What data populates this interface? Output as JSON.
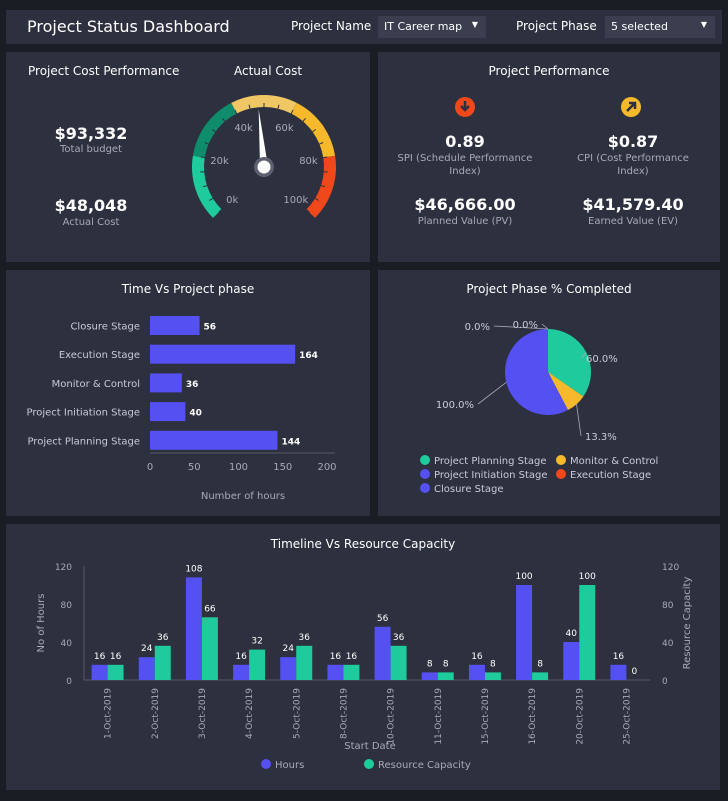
{
  "header": {
    "title": "Project Status Dashboard",
    "project_name_label": "Project Name",
    "project_name_value": "IT Career map",
    "project_phase_label": "Project Phase",
    "project_phase_value": "5 selected"
  },
  "cost": {
    "title": "Project Cost Performance",
    "budget_value": "$93,332",
    "budget_label": "Total budget",
    "actual_value": "$48,048",
    "actual_label": "Actual Cost"
  },
  "gauge": {
    "title": "Actual Cost",
    "value": 48048,
    "min": 0,
    "max": 100000,
    "tick_labels": [
      "0k",
      "20k",
      "40k",
      "60k",
      "80k",
      "100k"
    ],
    "bands": [
      {
        "from": 0,
        "to": 20000,
        "color": "#1fcb9c"
      },
      {
        "from": 20000,
        "to": 40000,
        "color": "#0e8c6c"
      },
      {
        "from": 40000,
        "to": 60000,
        "color": "#f0c765"
      },
      {
        "from": 60000,
        "to": 80000,
        "color": "#f5b92b"
      },
      {
        "from": 80000,
        "to": 100000,
        "color": "#f0481a"
      }
    ]
  },
  "performance": {
    "title": "Project Performance",
    "spi": {
      "value": "0.89",
      "label": "SPI (Schedule Performance Index)",
      "icon": "arrow-down-circle-icon",
      "color": "#f0481a"
    },
    "cpi": {
      "value": "$0.87",
      "label": "CPI (Cost Performance Index)",
      "icon": "arrow-up-right-circle-icon",
      "color": "#f5b92b"
    },
    "pv": {
      "value": "$46,666.00",
      "label": "Planned Value (PV)"
    },
    "ev": {
      "value": "$41,579.40",
      "label": "Earned Value (EV)"
    }
  },
  "chart_data": [
    {
      "type": "bar",
      "orientation": "horizontal",
      "title": "Time Vs Project phase",
      "xlabel": "Number of hours",
      "categories": [
        "Closure Stage",
        "Execution Stage",
        "Monitor & Control",
        "Project Initiation Stage",
        "Project Planning Stage"
      ],
      "values": [
        56,
        164,
        36,
        40,
        144
      ],
      "xlim": [
        0,
        200
      ],
      "xticks": [
        "0",
        "50",
        "100",
        "150",
        "200"
      ],
      "color": "#5550f2"
    },
    {
      "type": "pie",
      "title": "Project Phase % Completed",
      "slices": [
        {
          "name": "Project Planning Stage",
          "value": 60.0,
          "label": "60.0%",
          "color": "#1fcb9c"
        },
        {
          "name": "Monitor & Control",
          "value": 13.3,
          "label": "13.3%",
          "color": "#f5b92b"
        },
        {
          "name": "Project Initiation Stage",
          "value": 100.0,
          "label": "100.0%",
          "color": "#5550f2"
        },
        {
          "name": "Execution Stage",
          "value": 0.0,
          "label": "0.0%",
          "color": "#f0481a"
        },
        {
          "name": "Closure Stage",
          "value": 0.0,
          "label": "0.0%",
          "color": "#5550f2"
        }
      ],
      "legend": "bottom"
    },
    {
      "type": "bar",
      "title": "Timeline Vs Resource Capacity",
      "xlabel": "Start Date",
      "ylabel": "No of Hours",
      "y2label": "Resource Capacity",
      "ylim": [
        0,
        120
      ],
      "yticks": [
        "0",
        "40",
        "80",
        "120"
      ],
      "categories": [
        "1-Oct-2019",
        "2-Oct-2019",
        "3-Oct-2019",
        "4-Oct-2019",
        "5-Oct-2019",
        "8-Oct-2019",
        "10-Oct-2019",
        "11-Oct-2019",
        "15-Oct-2019",
        "16-Oct-2019",
        "20-Oct-2019",
        "25-Oct-2019"
      ],
      "series": [
        {
          "name": "Hours",
          "color": "#5550f2",
          "values": [
            16,
            24,
            108,
            16,
            24,
            16,
            56,
            8,
            16,
            100,
            40,
            16
          ]
        },
        {
          "name": "Resource Capacity",
          "color": "#1fcb9c",
          "values": [
            16,
            36,
            66,
            32,
            36,
            16,
            36,
            8,
            8,
            8,
            100,
            0
          ]
        }
      ],
      "legend": "bottom"
    }
  ]
}
